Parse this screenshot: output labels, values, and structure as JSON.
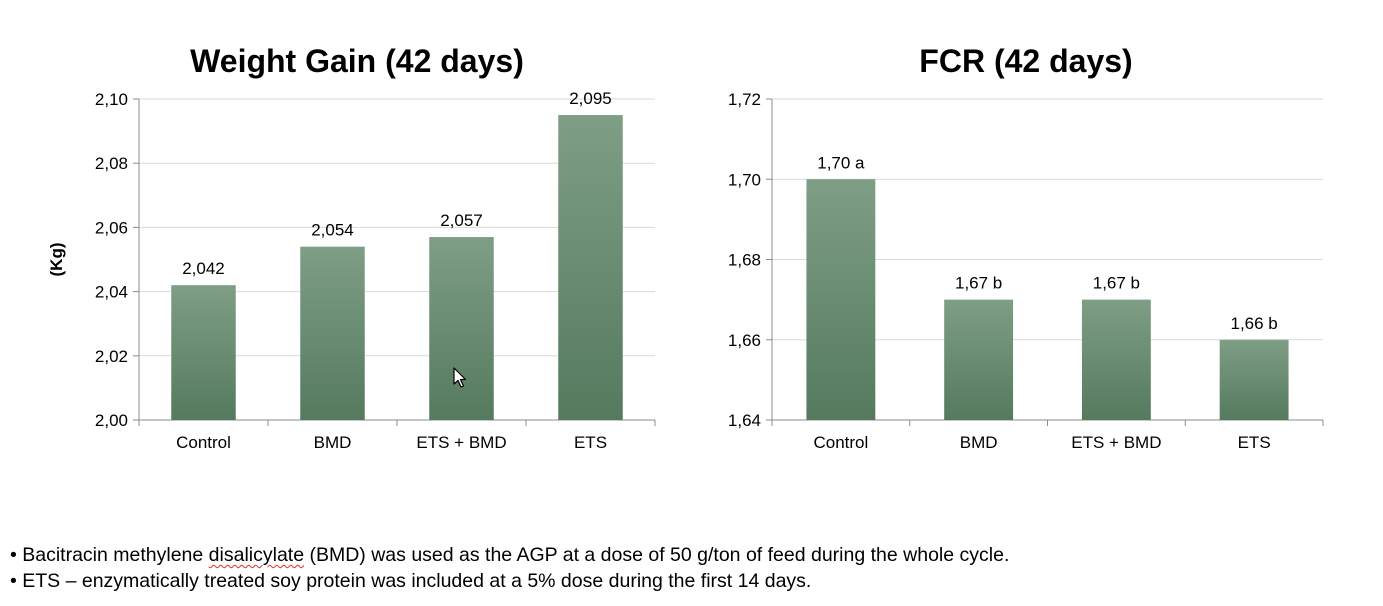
{
  "colors": {
    "bar_top": "#7e9e86",
    "bar_bottom": "#557a5e",
    "grid": "#d9d9d9",
    "axis": "#8c8c8c"
  },
  "chart_data": [
    {
      "type": "bar",
      "title": "Weight Gain (42 days)",
      "xlabel": "",
      "ylabel": "(Kg)",
      "categories": [
        "Control",
        "BMD",
        "ETS + BMD",
        "ETS"
      ],
      "values": [
        2.042,
        2.054,
        2.057,
        2.095
      ],
      "data_labels": [
        "2,042",
        "2,054",
        "2,057",
        "2,095"
      ],
      "ylim": [
        2.0,
        2.1
      ],
      "yticks": [
        2.0,
        2.02,
        2.04,
        2.06,
        2.08,
        2.1
      ],
      "ytick_labels": [
        "2,00",
        "2,02",
        "2,04",
        "2,06",
        "2,08",
        "2,10"
      ],
      "grid": true,
      "legend": "none"
    },
    {
      "type": "bar",
      "title": "FCR (42 days)",
      "xlabel": "",
      "ylabel": "",
      "categories": [
        "Control",
        "BMD",
        "ETS + BMD",
        "ETS"
      ],
      "values": [
        1.7,
        1.67,
        1.67,
        1.66
      ],
      "data_labels": [
        "1,70 a",
        "1,67 b",
        "1,67 b",
        "1,66 b"
      ],
      "ylim": [
        1.64,
        1.72
      ],
      "yticks": [
        1.64,
        1.66,
        1.68,
        1.7,
        1.72
      ],
      "ytick_labels": [
        "1,64",
        "1,66",
        "1,68",
        "1,70",
        "1,72"
      ],
      "grid": true,
      "legend": "none"
    }
  ],
  "notes": {
    "n1_pre": "• Bacitracin methylene ",
    "n1_underlined": "disalicylate",
    "n1_post": " (BMD) was used as the AGP at a dose of 50 g/ton of feed during the whole cycle.",
    "n2": "• ETS – enzymatically treated soy protein was included at a 5% dose during the first 14 days."
  },
  "cursor_icon": "mouse-pointer-icon"
}
